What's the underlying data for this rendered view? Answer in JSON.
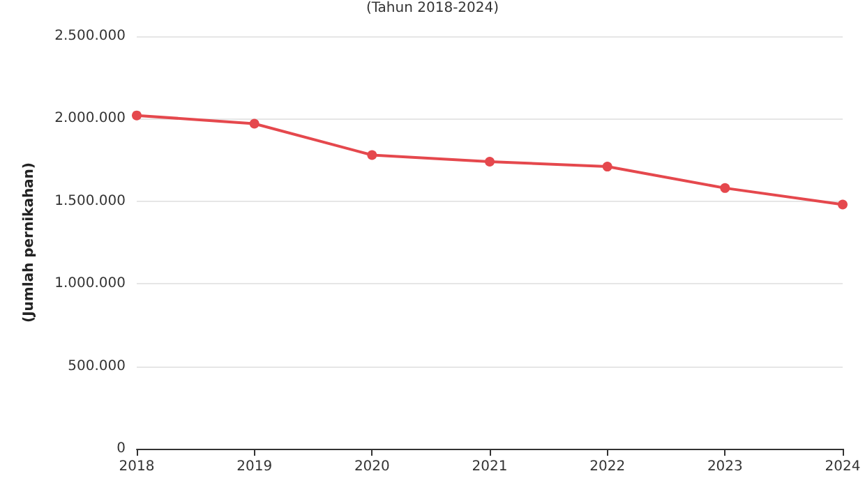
{
  "chart_data": {
    "type": "line",
    "subtitle": "(Tahun 2018-2024)",
    "ylabel": "(Jumlah pernikahan)",
    "categories": [
      "2018",
      "2019",
      "2020",
      "2021",
      "2022",
      "2023",
      "2024"
    ],
    "series": [
      {
        "color": "#e5484d",
        "values": [
          2020000,
          1970000,
          1780000,
          1740000,
          1710000,
          1580000,
          1480000
        ]
      }
    ],
    "ylim": [
      0,
      2500000
    ],
    "yticks": [
      {
        "value": 0,
        "label": "0"
      },
      {
        "value": 500000,
        "label": "500.000"
      },
      {
        "value": 1000000,
        "label": "1.000.000"
      },
      {
        "value": 1500000,
        "label": "1.500.000"
      },
      {
        "value": 2000000,
        "label": "2.000.000"
      },
      {
        "value": 2500000,
        "label": "2.500.000"
      }
    ],
    "grid": "y",
    "marker": "circle",
    "line_style": "solid"
  }
}
